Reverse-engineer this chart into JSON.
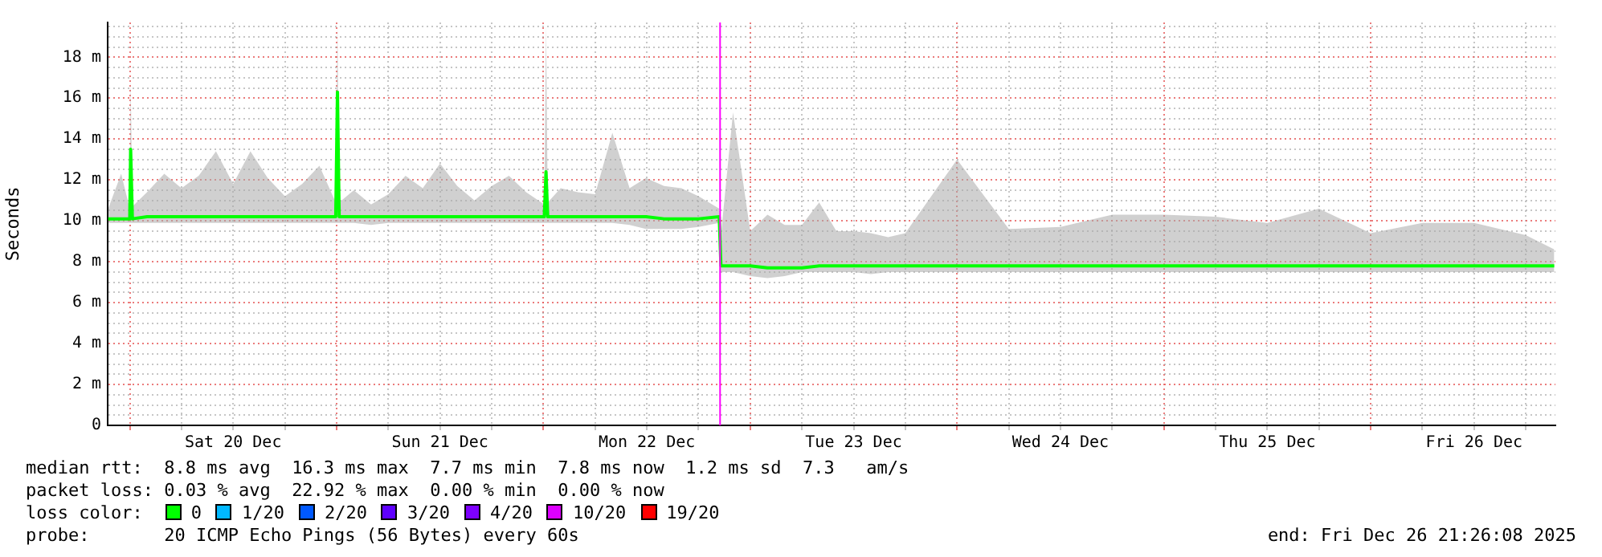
{
  "chart_data": {
    "type": "line",
    "ylabel": "Seconds",
    "x": [
      "2025-12-19T21:30",
      "2025-12-19T23:00",
      "2025-12-20T00:00",
      "2025-12-20T00:06",
      "2025-12-20T00:18",
      "2025-12-20T02:00",
      "2025-12-20T04:00",
      "2025-12-20T06:00",
      "2025-12-20T08:00",
      "2025-12-20T10:00",
      "2025-12-20T12:00",
      "2025-12-20T14:00",
      "2025-12-20T16:00",
      "2025-12-20T18:00",
      "2025-12-20T20:00",
      "2025-12-20T22:00",
      "2025-12-20T23:54",
      "2025-12-21T00:06",
      "2025-12-21T00:18",
      "2025-12-21T02:00",
      "2025-12-21T04:00",
      "2025-12-21T06:00",
      "2025-12-21T08:00",
      "2025-12-21T10:00",
      "2025-12-21T12:00",
      "2025-12-21T14:00",
      "2025-12-21T16:00",
      "2025-12-21T18:00",
      "2025-12-21T20:00",
      "2025-12-21T22:00",
      "2025-12-22T00:06",
      "2025-12-22T00:18",
      "2025-12-22T00:30",
      "2025-12-22T02:00",
      "2025-12-22T04:00",
      "2025-12-22T06:00",
      "2025-12-22T08:00",
      "2025-12-22T10:00",
      "2025-12-22T11:54",
      "2025-12-22T14:00",
      "2025-12-22T16:00",
      "2025-12-22T18:00",
      "2025-12-22T20:24",
      "2025-12-22T20:36",
      "2025-12-22T22:00",
      "2025-12-23T00:00",
      "2025-12-23T02:00",
      "2025-12-23T04:00",
      "2025-12-23T06:00",
      "2025-12-23T08:00",
      "2025-12-23T10:00",
      "2025-12-23T12:00",
      "2025-12-23T14:00",
      "2025-12-23T16:00",
      "2025-12-23T18:00",
      "2025-12-24T00:00",
      "2025-12-24T06:00",
      "2025-12-24T12:00",
      "2025-12-24T18:00",
      "2025-12-25T00:00",
      "2025-12-25T06:00",
      "2025-12-25T12:00",
      "2025-12-25T18:00",
      "2025-12-26T00:00",
      "2025-12-26T06:00",
      "2025-12-26T12:00",
      "2025-12-26T18:00",
      "2025-12-26T21:18"
    ],
    "series": [
      {
        "color": "#00ff00",
        "values": [
          10.1,
          10.1,
          10.1,
          13.5,
          10.1,
          10.2,
          10.2,
          10.2,
          10.2,
          10.2,
          10.2,
          10.2,
          10.2,
          10.2,
          10.2,
          10.2,
          10.2,
          16.3,
          10.2,
          10.2,
          10.2,
          10.2,
          10.2,
          10.2,
          10.2,
          10.2,
          10.2,
          10.2,
          10.2,
          10.2,
          10.2,
          12.4,
          10.2,
          10.2,
          10.2,
          10.2,
          10.2,
          10.2,
          10.2,
          10.1,
          10.1,
          10.1,
          10.2,
          7.8,
          7.8,
          7.8,
          7.7,
          7.7,
          7.7,
          7.8,
          7.8,
          7.8,
          7.8,
          7.8,
          7.8,
          7.8,
          7.8,
          7.8,
          7.8,
          7.8,
          7.8,
          7.8,
          7.8,
          7.8,
          7.8,
          7.8,
          7.8,
          7.8
        ],
        "lower": [
          9.9,
          9.9,
          9.9,
          9.9,
          9.9,
          9.9,
          9.9,
          9.9,
          9.9,
          9.9,
          9.9,
          9.9,
          9.9,
          9.9,
          9.9,
          9.9,
          9.9,
          9.9,
          9.9,
          9.9,
          9.8,
          9.9,
          9.9,
          9.9,
          9.9,
          9.9,
          9.9,
          9.9,
          9.9,
          9.9,
          9.9,
          9.9,
          9.9,
          9.9,
          9.9,
          9.9,
          9.9,
          9.8,
          9.6,
          9.6,
          9.6,
          9.7,
          9.9,
          7.5,
          7.5,
          7.3,
          7.2,
          7.3,
          7.5,
          7.5,
          7.5,
          7.5,
          7.4,
          7.5,
          7.5,
          7.5,
          7.5,
          7.5,
          7.5,
          7.5,
          7.5,
          7.5,
          7.5,
          7.5,
          7.5,
          7.5,
          7.5,
          7.5
        ],
        "upper": [
          10.6,
          12.3,
          10.6,
          17.0,
          10.7,
          11.4,
          12.3,
          11.6,
          12.2,
          13.4,
          11.8,
          13.4,
          12.1,
          11.2,
          11.8,
          12.7,
          10.9,
          19.6,
          10.9,
          11.5,
          10.8,
          11.3,
          12.2,
          11.6,
          12.8,
          11.7,
          11.0,
          11.7,
          12.2,
          11.4,
          10.8,
          19.6,
          10.9,
          11.6,
          11.4,
          11.3,
          14.3,
          11.6,
          12.1,
          11.7,
          11.6,
          11.2,
          10.6,
          9.3,
          15.3,
          9.5,
          10.3,
          9.8,
          9.8,
          10.9,
          9.5,
          9.5,
          9.4,
          9.2,
          9.4,
          13.0,
          9.6,
          9.7,
          10.3,
          10.3,
          10.2,
          9.9,
          10.6,
          9.4,
          9.9,
          9.9,
          9.3,
          8.6
        ]
      }
    ],
    "xlim": [
      "2025-12-19T21:26",
      "2025-12-26T21:26"
    ],
    "xticks": [
      {
        "value": "2025-12-20T00:00",
        "label": null
      },
      {
        "value": "2025-12-20T06:00",
        "label": null
      },
      {
        "value": "2025-12-20T12:00",
        "label": "Sat 20 Dec"
      },
      {
        "value": "2025-12-20T18:00",
        "label": null
      },
      {
        "value": "2025-12-21T00:00",
        "label": null
      },
      {
        "value": "2025-12-21T06:00",
        "label": null
      },
      {
        "value": "2025-12-21T12:00",
        "label": "Sun 21 Dec"
      },
      {
        "value": "2025-12-21T18:00",
        "label": null
      },
      {
        "value": "2025-12-22T00:00",
        "label": null
      },
      {
        "value": "2025-12-22T06:00",
        "label": null
      },
      {
        "value": "2025-12-22T12:00",
        "label": "Mon 22 Dec"
      },
      {
        "value": "2025-12-22T18:00",
        "label": null
      },
      {
        "value": "2025-12-23T00:00",
        "label": null
      },
      {
        "value": "2025-12-23T06:00",
        "label": null
      },
      {
        "value": "2025-12-23T12:00",
        "label": "Tue 23 Dec"
      },
      {
        "value": "2025-12-23T18:00",
        "label": null
      },
      {
        "value": "2025-12-24T00:00",
        "label": null
      },
      {
        "value": "2025-12-24T06:00",
        "label": null
      },
      {
        "value": "2025-12-24T12:00",
        "label": "Wed 24 Dec"
      },
      {
        "value": "2025-12-24T18:00",
        "label": null
      },
      {
        "value": "2025-12-25T00:00",
        "label": null
      },
      {
        "value": "2025-12-25T06:00",
        "label": null
      },
      {
        "value": "2025-12-25T12:00",
        "label": "Thu 25 Dec"
      },
      {
        "value": "2025-12-25T18:00",
        "label": null
      },
      {
        "value": "2025-12-26T00:00",
        "label": null
      },
      {
        "value": "2025-12-26T06:00",
        "label": null
      },
      {
        "value": "2025-12-26T12:00",
        "label": "Fri 26 Dec"
      },
      {
        "value": "2025-12-26T18:00",
        "label": null
      }
    ],
    "ylim": [
      0,
      19.7
    ],
    "yticks": [
      0,
      {
        "value": 0.5,
        "label": null
      },
      {
        "value": 1,
        "label": null
      },
      {
        "value": 1.5,
        "label": null
      },
      {
        "value": 2,
        "label": "2 m"
      },
      {
        "value": 2.5,
        "label": null
      },
      {
        "value": 3,
        "label": null
      },
      {
        "value": 3.5,
        "label": null
      },
      {
        "value": 4,
        "label": "4 m"
      },
      {
        "value": 4.5,
        "label": null
      },
      {
        "value": 5,
        "label": null
      },
      {
        "value": 5.5,
        "label": null
      },
      {
        "value": 6,
        "label": "6 m"
      },
      {
        "value": 6.5,
        "label": null
      },
      {
        "value": 7,
        "label": null
      },
      {
        "value": 7.5,
        "label": null
      },
      {
        "value": 8,
        "label": "8 m"
      },
      {
        "value": 8.5,
        "label": null
      },
      {
        "value": 9,
        "label": null
      },
      {
        "value": 9.5,
        "label": null
      },
      {
        "value": 10,
        "label": "10 m"
      },
      {
        "value": 10.5,
        "label": null
      },
      {
        "value": 11,
        "label": null
      },
      {
        "value": 11.5,
        "label": null
      },
      {
        "value": 12,
        "label": "12 m"
      },
      {
        "value": 12.5,
        "label": null
      },
      {
        "value": 13,
        "label": null
      },
      {
        "value": 13.5,
        "label": null
      },
      {
        "value": 14,
        "label": "14 m"
      },
      {
        "value": 14.5,
        "label": null
      },
      {
        "value": 15,
        "label": null
      },
      {
        "value": 15.5,
        "label": null
      },
      {
        "value": 16,
        "label": "16 m"
      },
      {
        "value": 16.5,
        "label": null
      },
      {
        "value": 17,
        "label": null
      },
      {
        "value": 17.5,
        "label": null
      },
      {
        "value": 18,
        "label": "18 m"
      },
      {
        "value": 18.5,
        "label": null
      },
      {
        "value": 19,
        "label": null
      },
      {
        "value": 19.5,
        "label": null
      }
    ],
    "ref_lines": [
      {
        "axis": "x",
        "value": "2025-12-22T20:30",
        "color": "#ff00ff"
      }
    ],
    "grid": true,
    "legend": false,
    "marker": "none",
    "line_style": "solid",
    "annotations": [
      "median rtt:  8.8 ms avg  16.3 ms max  7.7 ms min  7.8 ms now  1.2 ms sd  7.3   am/s",
      "packet loss: 0.03 % avg  22.92 % max  0.00 % min  0.00 % now",
      "loss color:",
      "0",
      "1/20",
      "2/20",
      "3/20",
      "4/20",
      "10/20",
      "19/20",
      "probe:       20 ICMP Echo Pings (56 Bytes) every 60s",
      "end: Fri Dec 26 21:26:08 2025"
    ]
  }
}
